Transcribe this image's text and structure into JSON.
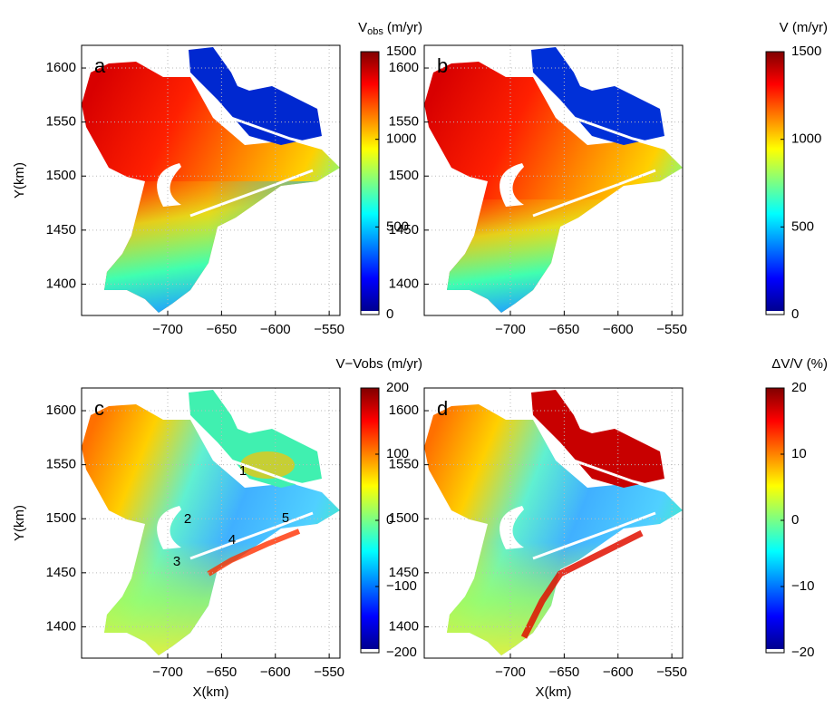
{
  "chart_data": [
    {
      "type": "map",
      "panel_label": "a",
      "colorbar_title": "V",
      "colorbar_title_sub": "obs",
      "colorbar_title_unit": "(m/yr)",
      "ylabel": "Y(km)",
      "xlim": [
        -780,
        -540
      ],
      "xticks": [
        {
          "value": -700,
          "label": "−700"
        },
        {
          "value": -650,
          "label": "−650"
        },
        {
          "value": -600,
          "label": "−600"
        },
        {
          "value": -550,
          "label": "−550"
        }
      ],
      "ylim": [
        1371,
        1621
      ],
      "yticks": [
        1400,
        1450,
        1500,
        1550,
        1600
      ],
      "clim": [
        0,
        1500
      ],
      "cticks": [
        0,
        500,
        1000,
        1500
      ],
      "grid": true
    },
    {
      "type": "map",
      "panel_label": "b",
      "colorbar_title": "V (m/yr)",
      "xlim": [
        -780,
        -540
      ],
      "xticks": [
        {
          "value": -700,
          "label": "−700"
        },
        {
          "value": -650,
          "label": "−650"
        },
        {
          "value": -600,
          "label": "−600"
        },
        {
          "value": -550,
          "label": "−550"
        }
      ],
      "ylim": [
        1371,
        1621
      ],
      "yticks": [
        1400,
        1450,
        1500,
        1550,
        1600
      ],
      "clim": [
        0,
        1500
      ],
      "cticks": [
        0,
        500,
        1000,
        1500
      ],
      "grid": true
    },
    {
      "type": "map",
      "panel_label": "c",
      "colorbar_title": "V−Vobs (m/yr)",
      "ylabel": "Y(km)",
      "xlabel": "X(km)",
      "annotations": [
        "1",
        "2",
        "3",
        "4",
        "5"
      ],
      "xlim": [
        -780,
        -540
      ],
      "xticks": [
        {
          "value": -700,
          "label": "−700"
        },
        {
          "value": -650,
          "label": "−650"
        },
        {
          "value": -600,
          "label": "−600"
        },
        {
          "value": -550,
          "label": "−550"
        }
      ],
      "ylim": [
        1371,
        1621
      ],
      "yticks": [
        1400,
        1450,
        1500,
        1550,
        1600
      ],
      "clim": [
        -200,
        200
      ],
      "cticks": [
        {
          "value": -200,
          "label": "−200"
        },
        {
          "value": -100,
          "label": "−100"
        },
        0,
        100,
        200
      ],
      "grid": true
    },
    {
      "type": "map",
      "panel_label": "d",
      "colorbar_title": "ΔV/V (%)",
      "xlabel": "X(km)",
      "xlim": [
        -780,
        -540
      ],
      "xticks": [
        {
          "value": -700,
          "label": "−700"
        },
        {
          "value": -650,
          "label": "−650"
        },
        {
          "value": -600,
          "label": "−600"
        },
        {
          "value": -550,
          "label": "−550"
        }
      ],
      "ylim": [
        1371,
        1621
      ],
      "yticks": [
        1400,
        1450,
        1500,
        1550,
        1600
      ],
      "clim": [
        -20,
        20
      ],
      "cticks": [
        {
          "value": -20,
          "label": "−20"
        },
        {
          "value": -10,
          "label": "−10"
        },
        0,
        10,
        20
      ],
      "grid": true
    }
  ]
}
